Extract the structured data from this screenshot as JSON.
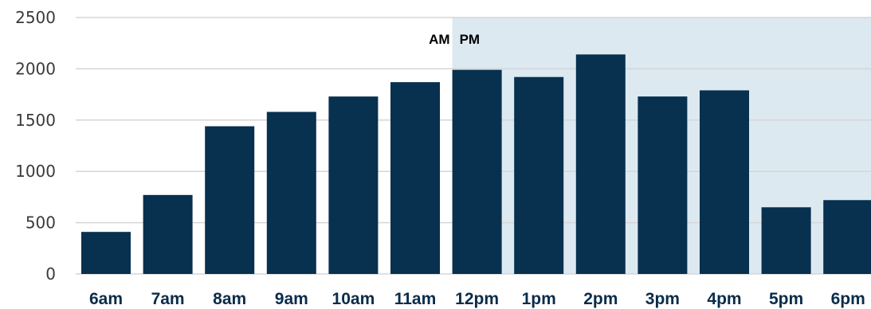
{
  "chart_data": {
    "type": "bar",
    "categories": [
      "6am",
      "7am",
      "8am",
      "9am",
      "10am",
      "11am",
      "12pm",
      "1pm",
      "2pm",
      "3pm",
      "4pm",
      "5pm",
      "6pm"
    ],
    "values": [
      410,
      770,
      1440,
      1580,
      1730,
      1870,
      1990,
      1920,
      2140,
      1730,
      1790,
      650,
      720
    ],
    "ylim": [
      0,
      2500
    ],
    "yticks": [
      0,
      500,
      1000,
      1500,
      2000,
      2500
    ],
    "grid": true,
    "annotations": {
      "am_label": "AM",
      "pm_label": "PM"
    },
    "pm_region_start_category": "12pm",
    "colors": {
      "bar": "#08304f",
      "pm_shade": "#dde9f1",
      "grid": "#d5d5d5"
    }
  }
}
